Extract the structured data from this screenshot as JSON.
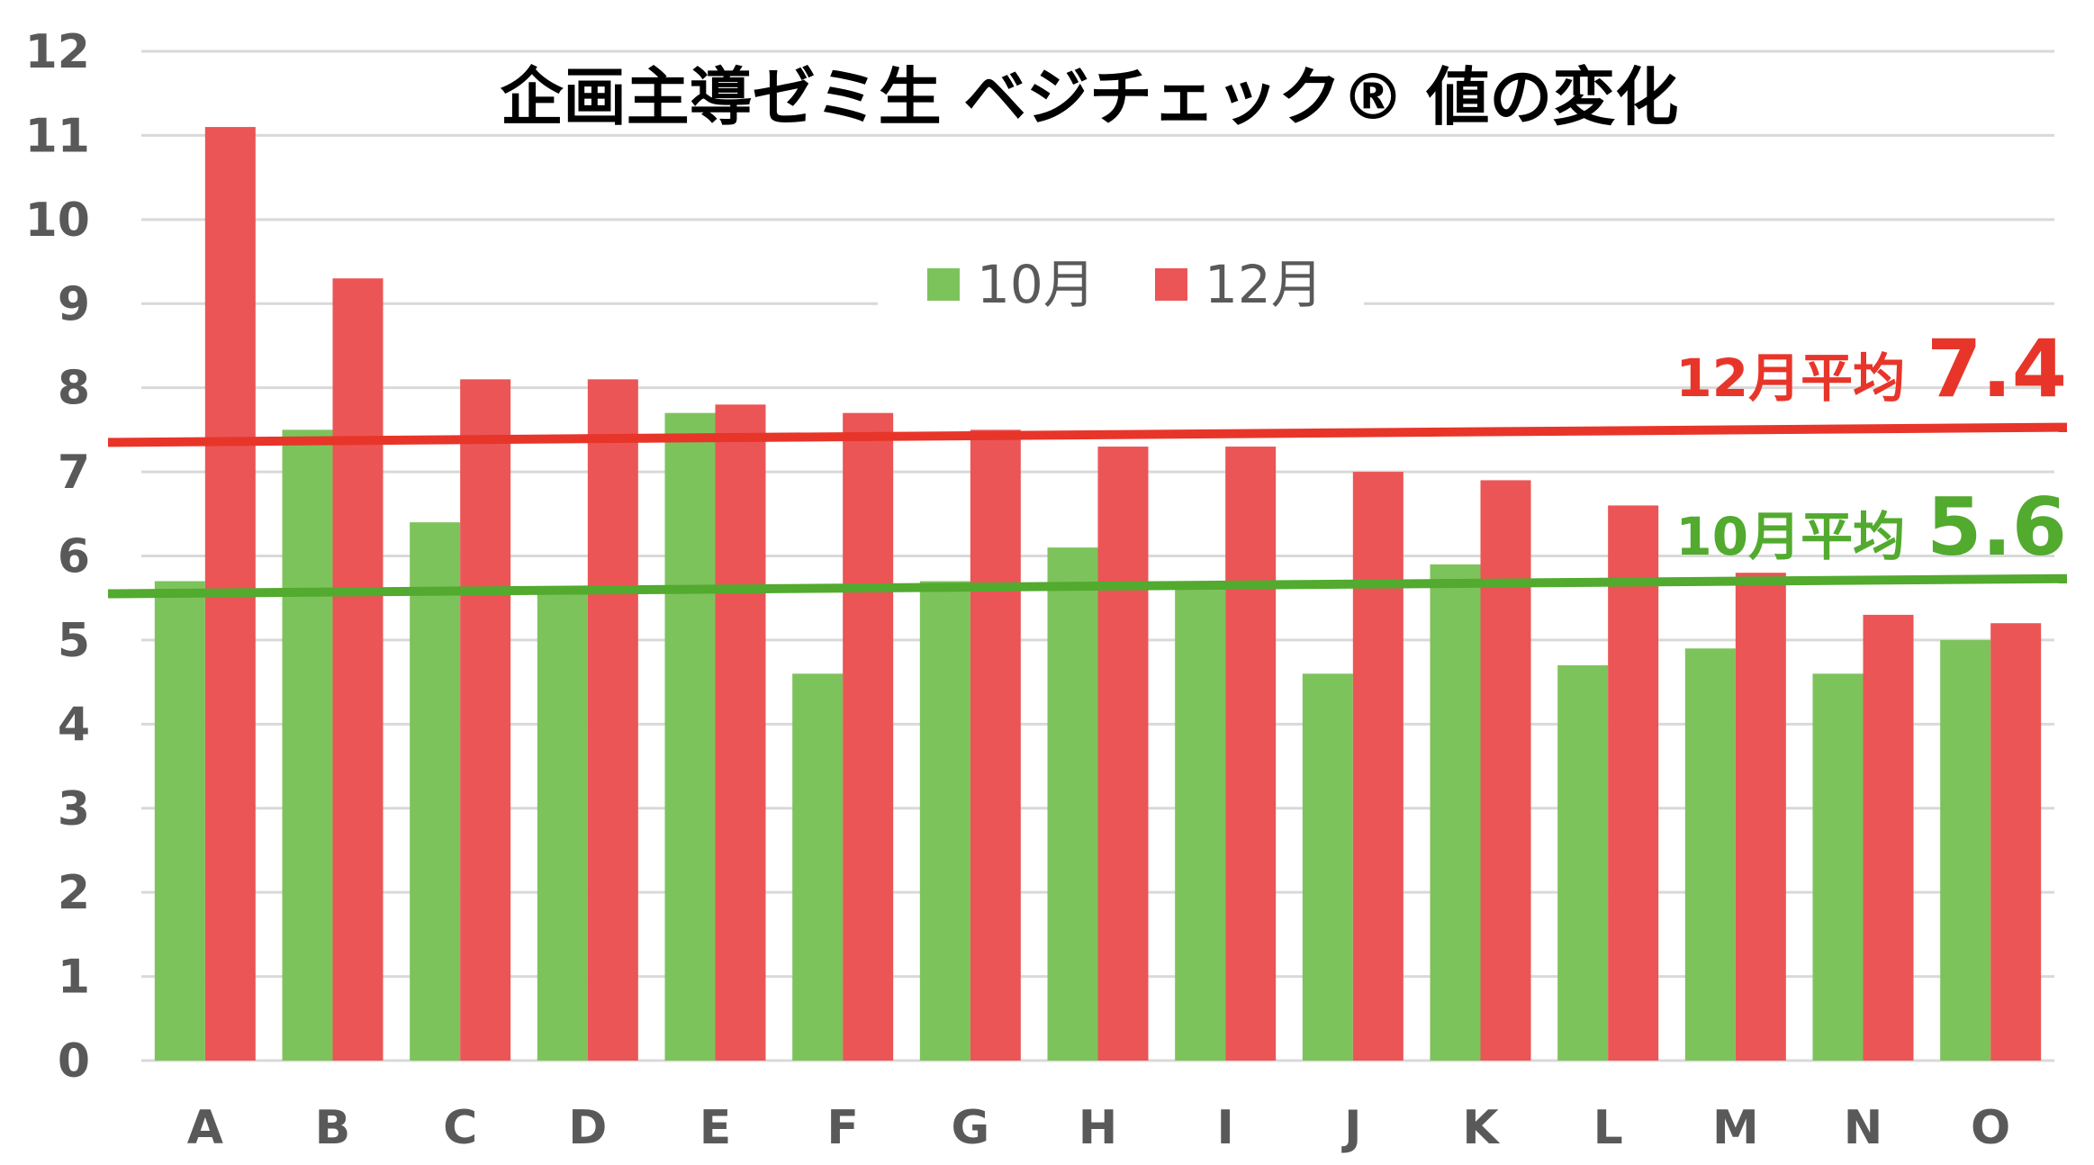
{
  "chart_data": {
    "type": "bar",
    "title": "企画主導ゼミ生 ベジチェック® 値の変化",
    "categories": [
      "A",
      "B",
      "C",
      "D",
      "E",
      "F",
      "G",
      "H",
      "I",
      "J",
      "K",
      "L",
      "M",
      "N",
      "O"
    ],
    "series": [
      {
        "name": "10月",
        "color": "#7DC35B",
        "values": [
          5.7,
          7.5,
          6.4,
          5.6,
          7.7,
          4.6,
          5.7,
          6.1,
          5.7,
          4.6,
          5.9,
          4.7,
          4.9,
          4.6,
          5.0
        ]
      },
      {
        "name": "12月",
        "color": "#EB5555",
        "values": [
          11.1,
          9.3,
          8.1,
          8.1,
          7.8,
          7.7,
          7.5,
          7.3,
          7.3,
          7.0,
          6.9,
          6.6,
          5.8,
          5.3,
          5.2
        ]
      }
    ],
    "ylim": [
      0,
      12
    ],
    "yticks": [
      "0",
      "1",
      "2",
      "3",
      "4",
      "5",
      "6",
      "7",
      "8",
      "9",
      "10",
      "11",
      "12"
    ],
    "grid": true,
    "legend": "top-center",
    "averages": [
      {
        "label": "10月平均",
        "value_text": "5.6",
        "value": 5.6,
        "color": "#52AA2E"
      },
      {
        "label": "12月平均",
        "value_text": "7.4",
        "value": 7.4,
        "color": "#E8352A"
      }
    ]
  }
}
